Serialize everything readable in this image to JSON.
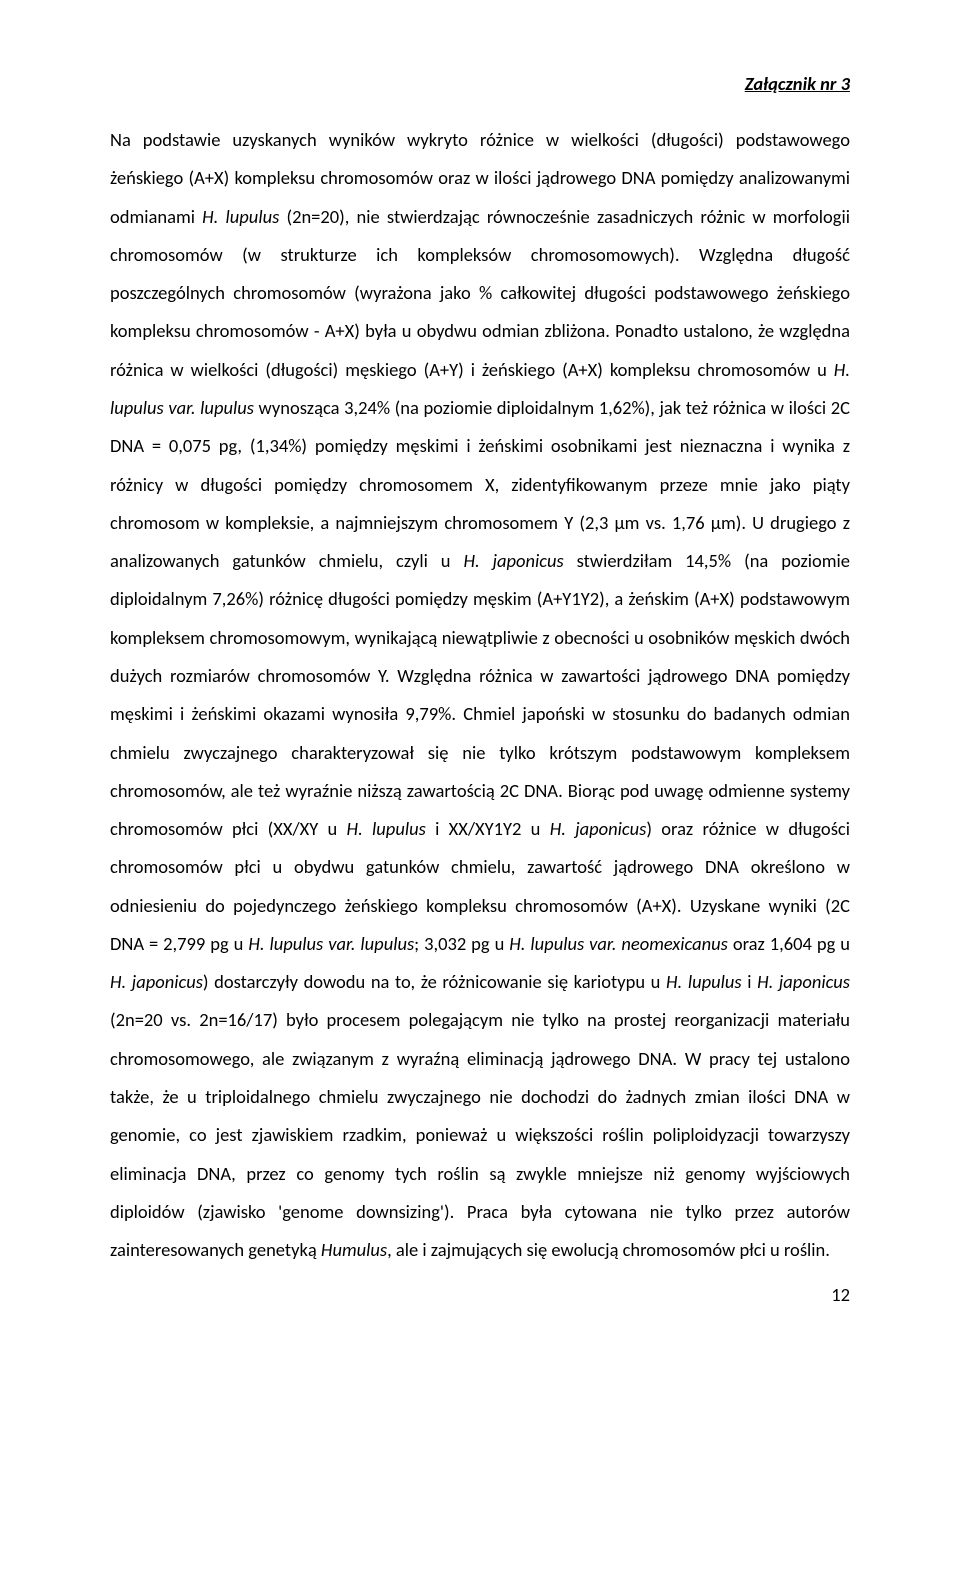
{
  "header": {
    "text": "Załącznik nr 3"
  },
  "page": {
    "number": "12"
  },
  "typography": {
    "font_family": "Calibri, Segoe UI, Arial, sans-serif",
    "font_size_pt": 11,
    "line_height": 2.07,
    "text_color": "#000000",
    "background_color": "#ffffff",
    "alignment": "justify"
  },
  "paragraph": {
    "s01": "Na podstawie uzyskanych wyników wykryto różnice w wielkości (długości) podstawowego żeńskiego (A+X) kompleksu chromosomów oraz w ilości jądrowego DNA pomiędzy analizowanymi odmianami ",
    "s02": "H. lupulus",
    "s03": " (2n=20), nie stwierdzając równocześnie zasadniczych różnic w morfologii chromosomów (w strukturze ich kompleksów chromosomowych). Względna długość poszczególnych chromosomów (wyrażona jako % całkowitej długości podstawowego żeńskiego kompleksu chromosomów - A+X) była u obydwu odmian zbliżona. Ponadto ustalono, że  względna różnica w  wielkości (długości) męskiego (A+Y) i żeńskiego (A+X) kompleksu chromosomów u ",
    "s04": "H. lupulus var. lupulus",
    "s05": " wynosząca 3,24% (na poziomie diploidalnym 1,62%), jak też różnica w ilości 2C DNA = 0,075 pg, (1,34%) pomiędzy męskimi i żeńskimi osobnikami jest nieznaczna i wynika z różnicy w długości pomiędzy chromosomem X, zidentyfikowanym przeze mnie jako piąty chromosom w kompleksie, a najmniejszym chromosomem Y (2,3 µm vs. 1,76 µm). U drugiego z analizowanych gatunków chmielu, czyli u ",
    "s06": "H. japonicus",
    "s07": " stwierdziłam 14,5% (na poziomie diploidalnym 7,26%) różnicę długości pomiędzy męskim (A+Y1Y2), a żeńskim (A+X) podstawowym kompleksem chromosomowym, wynikającą niewątpliwie z obecności u osobników męskich dwóch dużych rozmiarów chromosomów Y. Względna różnica w zawartości jądrowego DNA pomiędzy męskimi i żeńskimi okazami wynosiła 9,79%. Chmiel japoński w stosunku do badanych odmian chmielu zwyczajnego charakteryzował się nie tylko krótszym podstawowym kompleksem chromosomów, ale też wyraźnie niższą zawartością 2C DNA. Biorąc pod uwagę odmienne systemy chromosomów płci (XX/XY u ",
    "s08": "H. lupulus",
    "s09": " i XX/XY1Y2 u ",
    "s10": "H. japonicus",
    "s11": ") oraz różnice w długości chromosomów płci u obydwu gatunków chmielu, zawartość jądrowego DNA określono w odniesieniu do pojedynczego żeńskiego kompleksu chromosomów (A+X). Uzyskane wyniki (2C DNA = 2,799 pg u ",
    "s12": "H. lupulus var. lupulus",
    "s13": "; 3,032 pg u ",
    "s14": "H. lupulus var. neomexicanus",
    "s15": " oraz 1,604 pg u ",
    "s16": "H. japonicus",
    "s17": ") dostarczyły dowodu na to, że  różnicowanie się kariotypu u ",
    "s18": "H. lupulus",
    "s19": " i ",
    "s20": "H. japonicus",
    "s21": " (2n=20 vs. 2n=16/17) było procesem polegającym nie tylko na prostej reorganizacji materiału chromosomowego, ale związanym z wyraźną eliminacją jądrowego DNA.  W pracy tej ustalono także, że u triploidalnego chmielu zwyczajnego nie dochodzi do żadnych zmian ilości DNA w genomie, co jest zjawiskiem rzadkim, ponieważ u większości roślin poliploidyzacji towarzyszy eliminacja DNA, przez co genomy tych roślin są zwykle mniejsze niż genomy wyjściowych diploidów (zjawisko 'genome downsizing'). Praca była cytowana nie tylko przez autorów zainteresowanych genetyką ",
    "s22": "Humulus",
    "s23": ", ale i zajmujących się ewolucją chromosomów płci u roślin."
  }
}
